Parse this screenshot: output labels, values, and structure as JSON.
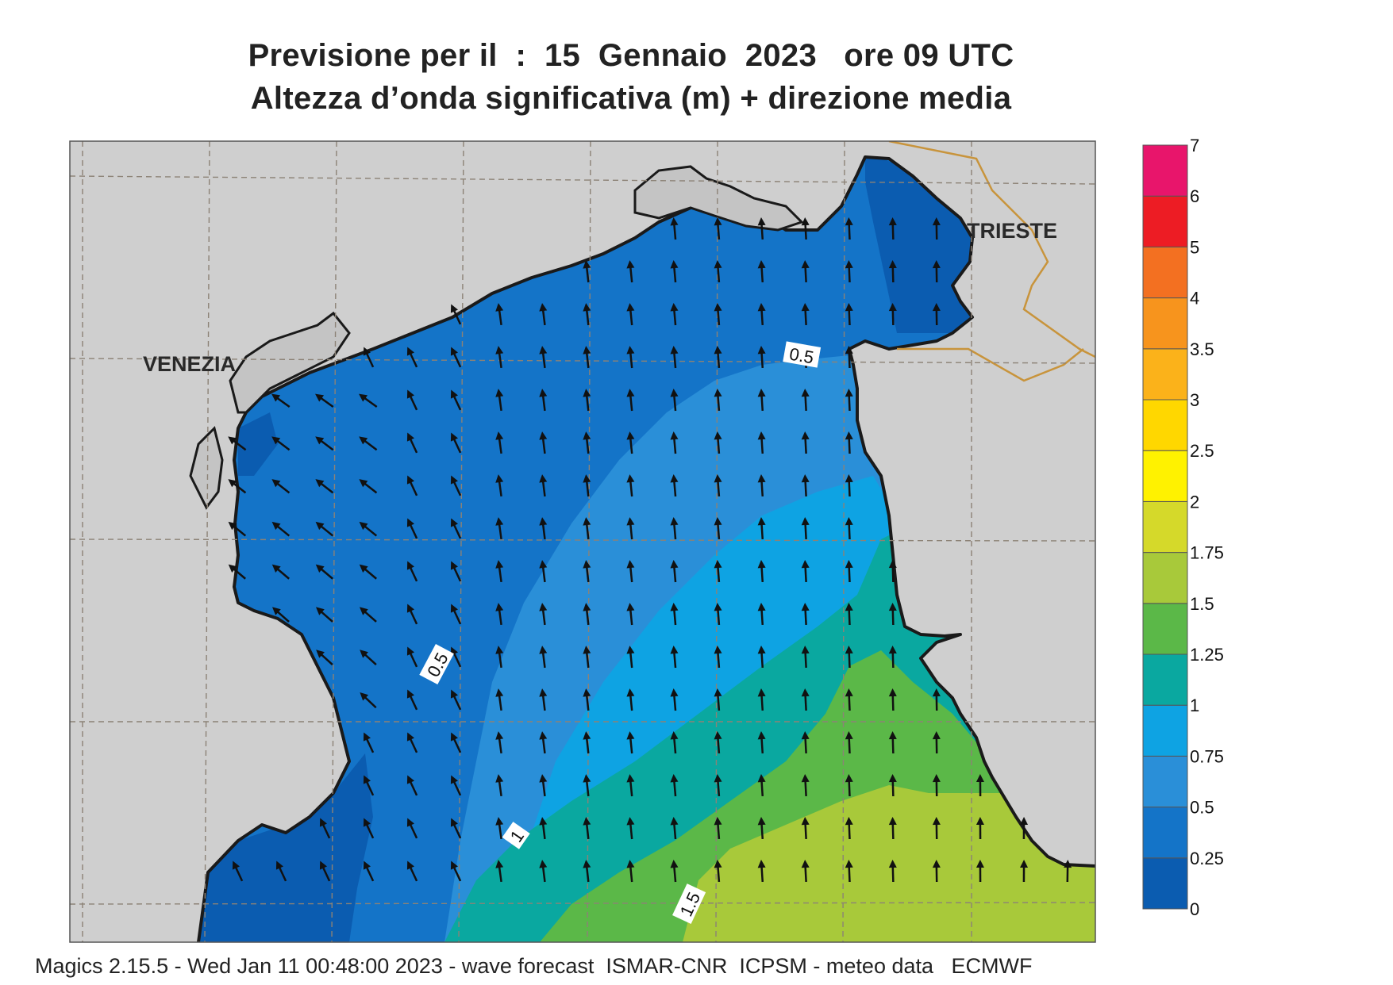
{
  "title": {
    "line1": "Previsione per il  :  15  Gennaio  2023   ore 09 UTC",
    "line2": "Altezza d’onda significativa (m) + direzione media"
  },
  "cities": [
    "VENEZIA",
    "TRIESTE"
  ],
  "contour_labels": [
    "0.5",
    "1",
    "1.5",
    "0.5"
  ],
  "legend": {
    "levels": [
      "0",
      "0.25",
      "0.5",
      "0.75",
      "1",
      "1.25",
      "1.5",
      "1.75",
      "2",
      "2.5",
      "3",
      "3.5",
      "4",
      "5",
      "6",
      "7"
    ],
    "colors": [
      "#0b5cb0",
      "#1474c8",
      "#2a8fd8",
      "#0ea3e3",
      "#0aa8a0",
      "#5bb848",
      "#a8c93a",
      "#d5d92a",
      "#fff200",
      "#ffd700",
      "#fbb21a",
      "#f7941d",
      "#f37021",
      "#ed1c24",
      "#e8156b"
    ]
  },
  "colors": {
    "land": "#cfcfcf",
    "coast": "#1a1a1a",
    "border": "#c8943c",
    "grid": "#8c8276"
  },
  "footer": "Magics 2.15.5 - Wed Jan 11 00:48:00 2023 - wave forecast  ISMAR-CNR  ICPSM - meteo data   ECMWF"
}
